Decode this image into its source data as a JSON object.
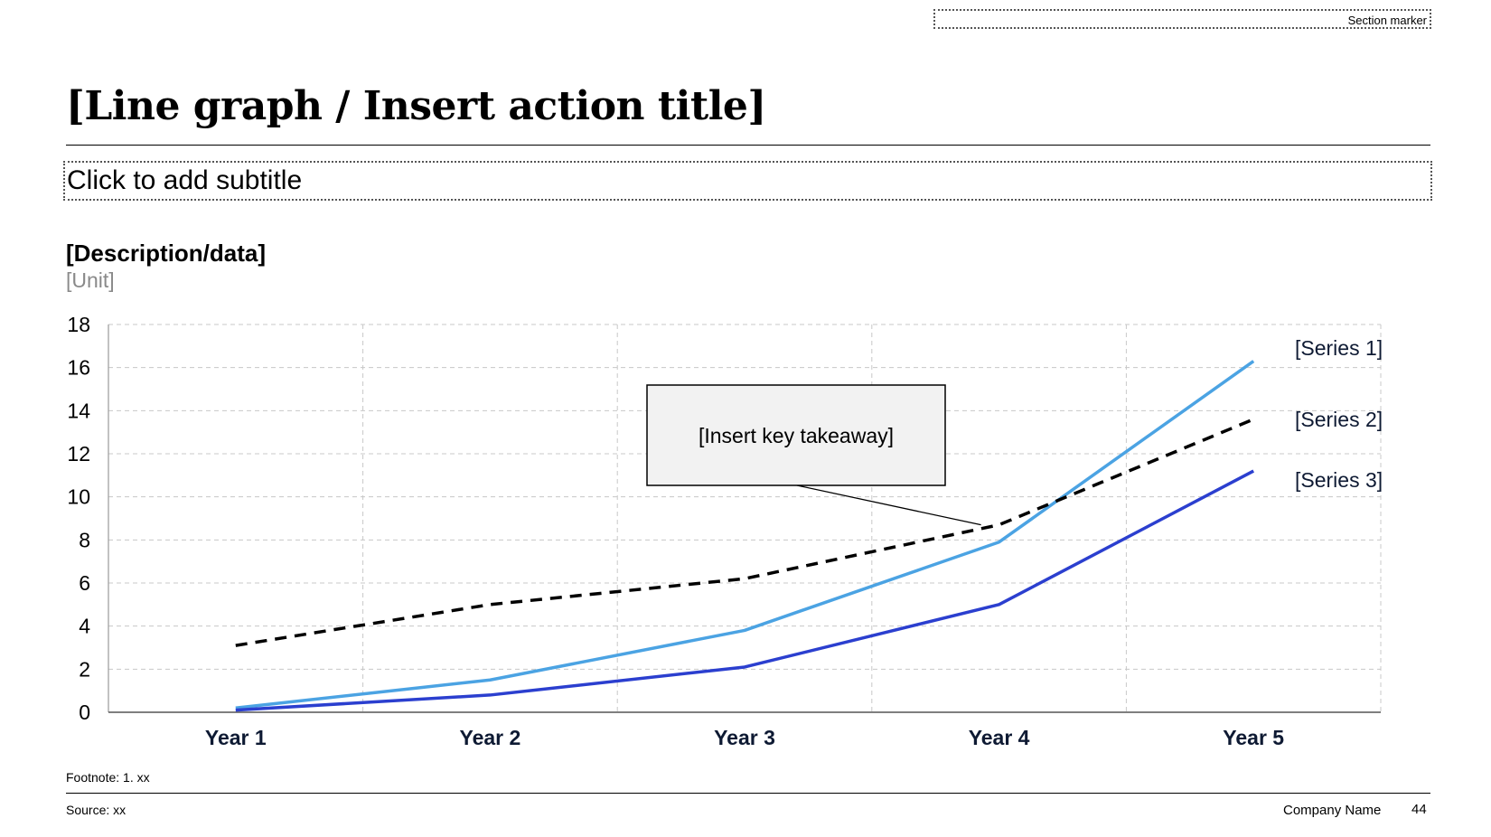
{
  "section_marker": "Section marker",
  "title": "[Line graph / Insert action title]",
  "subtitle": "Click to add subtitle",
  "description": "[Description/data]",
  "unit": "[Unit]",
  "footnote": "Footnote: 1. xx",
  "source": "Source: xx",
  "company": "Company Name",
  "page_number": "44",
  "chart_data": {
    "type": "line",
    "categories": [
      "Year 1",
      "Year 2",
      "Year 3",
      "Year 4",
      "Year 5"
    ],
    "series": [
      {
        "name": "[Series 1]",
        "values": [
          0.2,
          1.5,
          3.8,
          7.9,
          16.3
        ],
        "color": "#4BA3E3",
        "style": "solid"
      },
      {
        "name": "[Series 2]",
        "values": [
          3.1,
          5.0,
          6.2,
          8.7,
          13.6
        ],
        "color": "#000000",
        "style": "dashed"
      },
      {
        "name": "[Series 3]",
        "values": [
          0.1,
          0.8,
          2.1,
          5.0,
          11.2
        ],
        "color": "#2B3FCF",
        "style": "solid"
      }
    ],
    "yticks": [
      "0",
      "2",
      "4",
      "6",
      "8",
      "10",
      "12",
      "14",
      "16",
      "18"
    ],
    "ylim": [
      0,
      18
    ],
    "grid": true,
    "legend_placement": "right, labels at line ends",
    "annotation": {
      "text": "[Insert key takeaway]",
      "points_to": {
        "category": "Year 4",
        "value": 8.7
      }
    }
  }
}
